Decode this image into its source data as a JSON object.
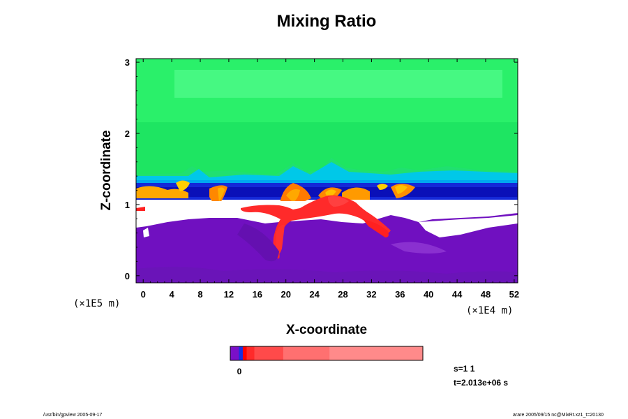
{
  "chart_data": {
    "type": "heatmap",
    "title": "Mixing Ratio",
    "xlabel": "X-coordinate",
    "ylabel": "Z-coordinate",
    "x_unit": "(×1E4 m)",
    "y_unit": "(×1E5 m)",
    "xlim": [
      -1,
      52.5
    ],
    "ylim": [
      -0.1,
      3.05
    ],
    "x_ticks": [
      0,
      4,
      8,
      12,
      16,
      20,
      24,
      28,
      32,
      36,
      40,
      44,
      48,
      52
    ],
    "y_ticks": [
      0,
      1,
      2,
      3
    ],
    "colorbar": {
      "tick_label": "0",
      "colors": [
        "#7a10c8",
        "#1830e0",
        "#ff0000",
        "#ff2a2a",
        "#ff4a4a",
        "#ff7070",
        "#ff8a8a",
        "#ff9e9e"
      ],
      "fractions": [
        0.045,
        0.02,
        0.02,
        0.04,
        0.15,
        0.24,
        0.485,
        0
      ]
    },
    "layers": [
      {
        "name": "upper",
        "color": "#2af06a",
        "z_from": 1.5,
        "z_to": 3.05
      },
      {
        "name": "mid-upper",
        "color": "#18e85a",
        "z_from": 1.42,
        "z_to": 2.1
      },
      {
        "name": "cyan",
        "color": "#00c8e8",
        "z_from": 1.32,
        "z_to": 1.45
      },
      {
        "name": "blue",
        "color": "#1428d8",
        "z_from": 1.12,
        "z_to": 1.32
      },
      {
        "name": "gap",
        "color": "#ffffff",
        "z_from": 0.88,
        "z_to": 1.07
      },
      {
        "name": "lower",
        "color": "#7010c0",
        "z_from": -0.1,
        "z_to": 0.88
      }
    ]
  },
  "info": {
    "slice": "s=1 1",
    "time": "t=2.013e+06 s"
  },
  "footer": {
    "left": "/usr/bin/gpview 2005-09-17",
    "right": "arare 2005/09/15 nc@MixRt.xz1_t=20130"
  },
  "colors": {
    "frame": "#000000",
    "background": "#ffffff"
  }
}
